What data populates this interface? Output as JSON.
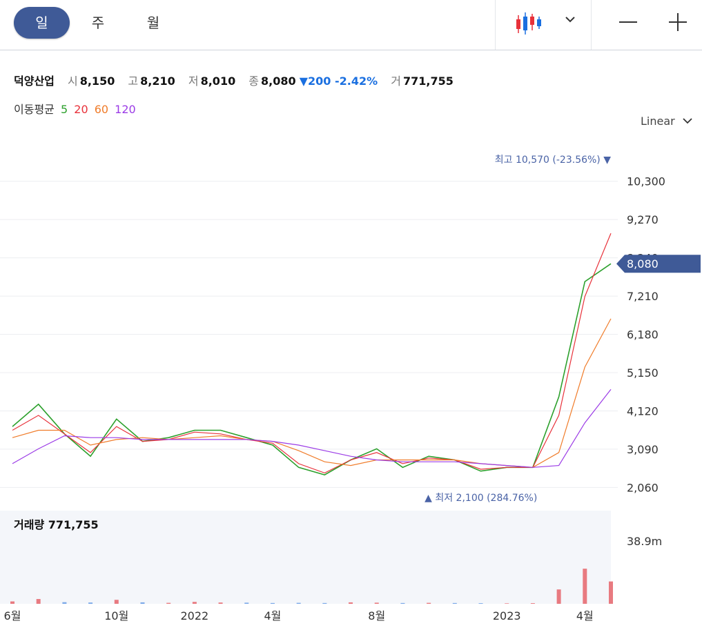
{
  "tabs": [
    {
      "label": "일",
      "active": true
    },
    {
      "label": "주",
      "active": false
    },
    {
      "label": "월",
      "active": false
    }
  ],
  "toolbar": {
    "chart_type_icon": "candlestick-icon",
    "dropdown_icon": "chevron-down-icon",
    "zoom_out_icon": "minus-icon",
    "zoom_in_icon": "plus-icon"
  },
  "quote": {
    "name": "덕양산업",
    "open_label": "시",
    "open": "8,150",
    "high_label": "고",
    "high": "8,210",
    "low_label": "저",
    "low": "8,010",
    "close_label": "종",
    "close": "8,080",
    "change": "▼200 -2.42%",
    "volume_label": "거",
    "volume": "771,755"
  },
  "moving_average": {
    "label": "이동평균",
    "periods": [
      "5",
      "20",
      "60",
      "120"
    ],
    "colors": [
      "#2ca02c",
      "#e8313a",
      "#f07c2a",
      "#9b3be6"
    ]
  },
  "scale_selector": {
    "label": "Linear"
  },
  "colors": {
    "up": "#e8313a",
    "down": "#1a6fe0",
    "accent": "#3f5a97",
    "annotation": "#4a63a6"
  },
  "chart_data": {
    "type": "line",
    "x": [
      "2021-06",
      "2021-07",
      "2021-08",
      "2021-09",
      "2021-10",
      "2021-11",
      "2021-12",
      "2022-01",
      "2022-02",
      "2022-03",
      "2022-04",
      "2022-05",
      "2022-06",
      "2022-07",
      "2022-08",
      "2022-09",
      "2022-10",
      "2022-11",
      "2022-12",
      "2023-01",
      "2023-02",
      "2023-03",
      "2023-04",
      "2023-05"
    ],
    "series": [
      {
        "name": "5",
        "values": [
          3700,
          4300,
          3500,
          2900,
          3900,
          3300,
          3400,
          3600,
          3600,
          3400,
          3200,
          2600,
          2400,
          2800,
          3100,
          2600,
          2900,
          2800,
          2500,
          2600,
          2600,
          4500,
          7600,
          8080
        ]
      },
      {
        "name": "20",
        "values": [
          3600,
          4000,
          3500,
          3000,
          3700,
          3300,
          3350,
          3550,
          3500,
          3350,
          3250,
          2700,
          2450,
          2800,
          3000,
          2700,
          2850,
          2800,
          2550,
          2600,
          2600,
          4000,
          7200,
          8900
        ]
      },
      {
        "name": "60",
        "values": [
          3400,
          3600,
          3600,
          3200,
          3350,
          3400,
          3350,
          3400,
          3450,
          3350,
          3300,
          3050,
          2750,
          2650,
          2800,
          2800,
          2800,
          2800,
          2700,
          2650,
          2600,
          3000,
          5300,
          6600
        ]
      },
      {
        "name": "120",
        "values": [
          2700,
          3100,
          3450,
          3400,
          3400,
          3350,
          3350,
          3350,
          3350,
          3350,
          3300,
          3200,
          3050,
          2900,
          2800,
          2750,
          2750,
          2750,
          2700,
          2650,
          2600,
          2650,
          3800,
          4700
        ]
      }
    ],
    "volume": [
      1.5,
      3.0,
      1.0,
      0.8,
      2.5,
      0.9,
      0.6,
      1.2,
      0.8,
      0.7,
      0.5,
      0.6,
      0.5,
      0.9,
      0.7,
      0.5,
      0.6,
      0.5,
      0.4,
      0.3,
      0.4,
      9.0,
      22.0,
      14.0
    ],
    "y_ticks": [
      "10,300",
      "9,270",
      "8,240",
      "7,210",
      "6,180",
      "5,150",
      "4,120",
      "3,090",
      "2,060"
    ],
    "y_tick_values": [
      10300,
      9270,
      8240,
      7210,
      6180,
      5150,
      4120,
      3090,
      2060
    ],
    "x_ticks": [
      {
        "label": "6월",
        "x": "2021-06"
      },
      {
        "label": "10월",
        "x": "2021-10"
      },
      {
        "label": "2022",
        "x": "2022-01"
      },
      {
        "label": "4월",
        "x": "2022-04"
      },
      {
        "label": "8월",
        "x": "2022-08"
      },
      {
        "label": "2023",
        "x": "2023-01"
      },
      {
        "label": "4월",
        "x": "2023-04"
      }
    ],
    "ylim": [
      1900,
      11000
    ],
    "current_price": "8,080",
    "current_value": 8080,
    "high_label": "최고",
    "high_text": "10,570 (-23.56%)",
    "high_value": 10570,
    "high_x": "2023-05",
    "low_label": "최저",
    "low_text": "2,100 (284.76%)",
    "low_value": 2100,
    "low_x": "2022-10",
    "volume_label": "거래량",
    "volume_value": "771,755",
    "volume_tick": "38.9m",
    "volume_tick_value": 38.9
  }
}
